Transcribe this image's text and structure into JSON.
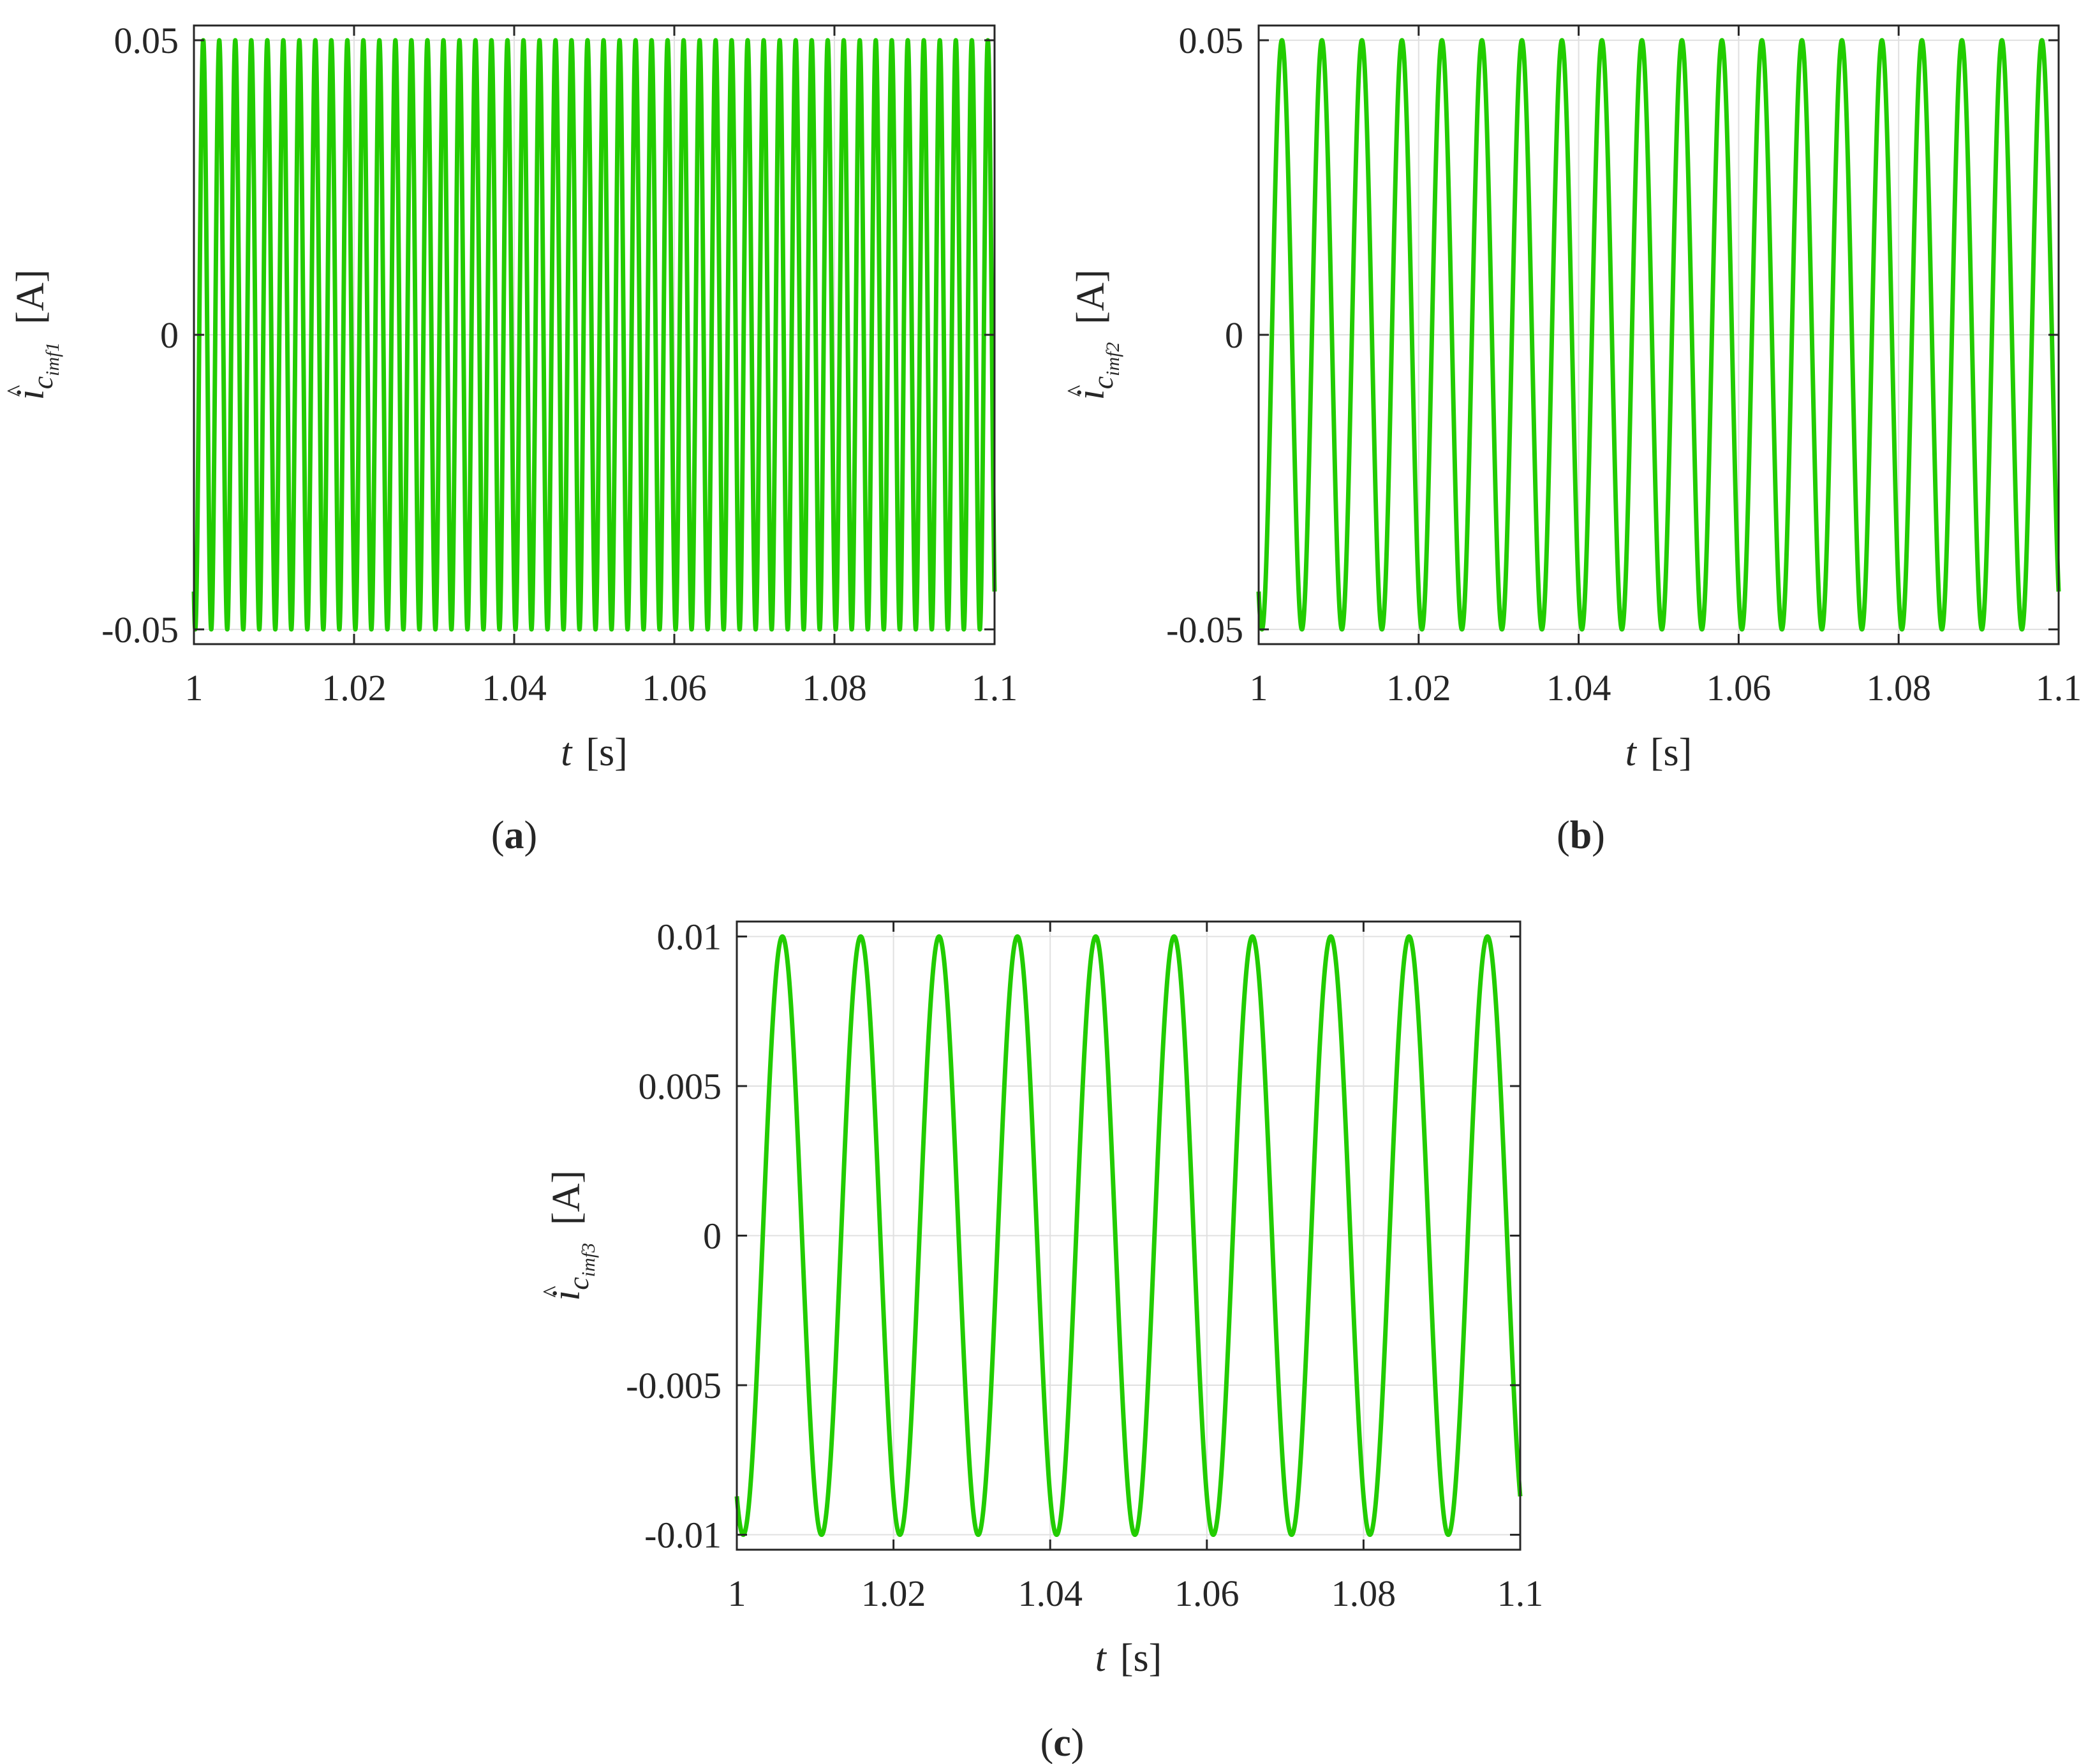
{
  "figure": {
    "colors": {
      "series": "#22cc00",
      "grid": "#e0e0e0",
      "axis": "#262626",
      "background": "#ffffff"
    }
  },
  "chart_data": [
    {
      "type": "line",
      "panel": "a",
      "caption": {
        "open": "(",
        "letter": "a",
        "close": ")"
      },
      "xlabel": {
        "var": "t",
        "unit": "[s]"
      },
      "ylabel": {
        "hat": "^",
        "base": "i",
        "sub": "c",
        "subsub": "imf1",
        "unit": "[A]"
      },
      "xlim": [
        1,
        1.1
      ],
      "ylim": [
        -0.0525,
        0.0525
      ],
      "xticks": [
        1,
        1.02,
        1.04,
        1.06,
        1.08,
        1.1
      ],
      "xtick_labels": [
        "1",
        "1.02",
        "1.04",
        "1.06",
        "1.08",
        "1.1"
      ],
      "yticks": [
        -0.05,
        0,
        0.05
      ],
      "ytick_labels": [
        "-0.05",
        "0",
        "0.05"
      ],
      "grid": true,
      "series": [
        {
          "function": "sine",
          "amplitude": 0.05,
          "frequency_hz": 500,
          "phase_rad": 4.2,
          "t_start": 1,
          "t_end": 1.1,
          "color": "#22cc00"
        }
      ]
    },
    {
      "type": "line",
      "panel": "b",
      "caption": {
        "open": "(",
        "letter": "b",
        "close": ")"
      },
      "xlabel": {
        "var": "t",
        "unit": "[s]"
      },
      "ylabel": {
        "hat": "^",
        "base": "i",
        "sub": "c",
        "subsub": "imf2",
        "unit": "[A]"
      },
      "xlim": [
        1,
        1.1
      ],
      "ylim": [
        -0.0525,
        0.0525
      ],
      "xticks": [
        1,
        1.02,
        1.04,
        1.06,
        1.08,
        1.1
      ],
      "xtick_labels": [
        "1",
        "1.02",
        "1.04",
        "1.06",
        "1.08",
        "1.1"
      ],
      "yticks": [
        -0.05,
        0,
        0.05
      ],
      "ytick_labels": [
        "-0.05",
        "0",
        "0.05"
      ],
      "grid": true,
      "series": [
        {
          "function": "sine",
          "amplitude": 0.05,
          "frequency_hz": 200,
          "phase_rad": 4.2,
          "t_start": 1,
          "t_end": 1.1,
          "color": "#22cc00"
        }
      ]
    },
    {
      "type": "line",
      "panel": "c",
      "caption": {
        "open": "(",
        "letter": "c",
        "close": ")"
      },
      "xlabel": {
        "var": "t",
        "unit": "[s]"
      },
      "ylabel": {
        "hat": "^",
        "base": "i",
        "sub": "c",
        "subsub": "imf3",
        "unit": "[A]"
      },
      "xlim": [
        1,
        1.1
      ],
      "ylim": [
        -0.0105,
        0.0105
      ],
      "xticks": [
        1,
        1.02,
        1.04,
        1.06,
        1.08,
        1.1
      ],
      "xtick_labels": [
        "1",
        "1.02",
        "1.04",
        "1.06",
        "1.08",
        "1.1"
      ],
      "yticks": [
        -0.01,
        -0.005,
        0,
        0.005,
        0.01
      ],
      "ytick_labels": [
        "-0.01",
        "-0.005",
        "0",
        "0.005",
        "0.01"
      ],
      "grid": true,
      "series": [
        {
          "function": "sine",
          "amplitude": 0.01,
          "frequency_hz": 100,
          "phase_rad": 4.2,
          "t_start": 1,
          "t_end": 1.1,
          "color": "#22cc00"
        }
      ]
    }
  ]
}
